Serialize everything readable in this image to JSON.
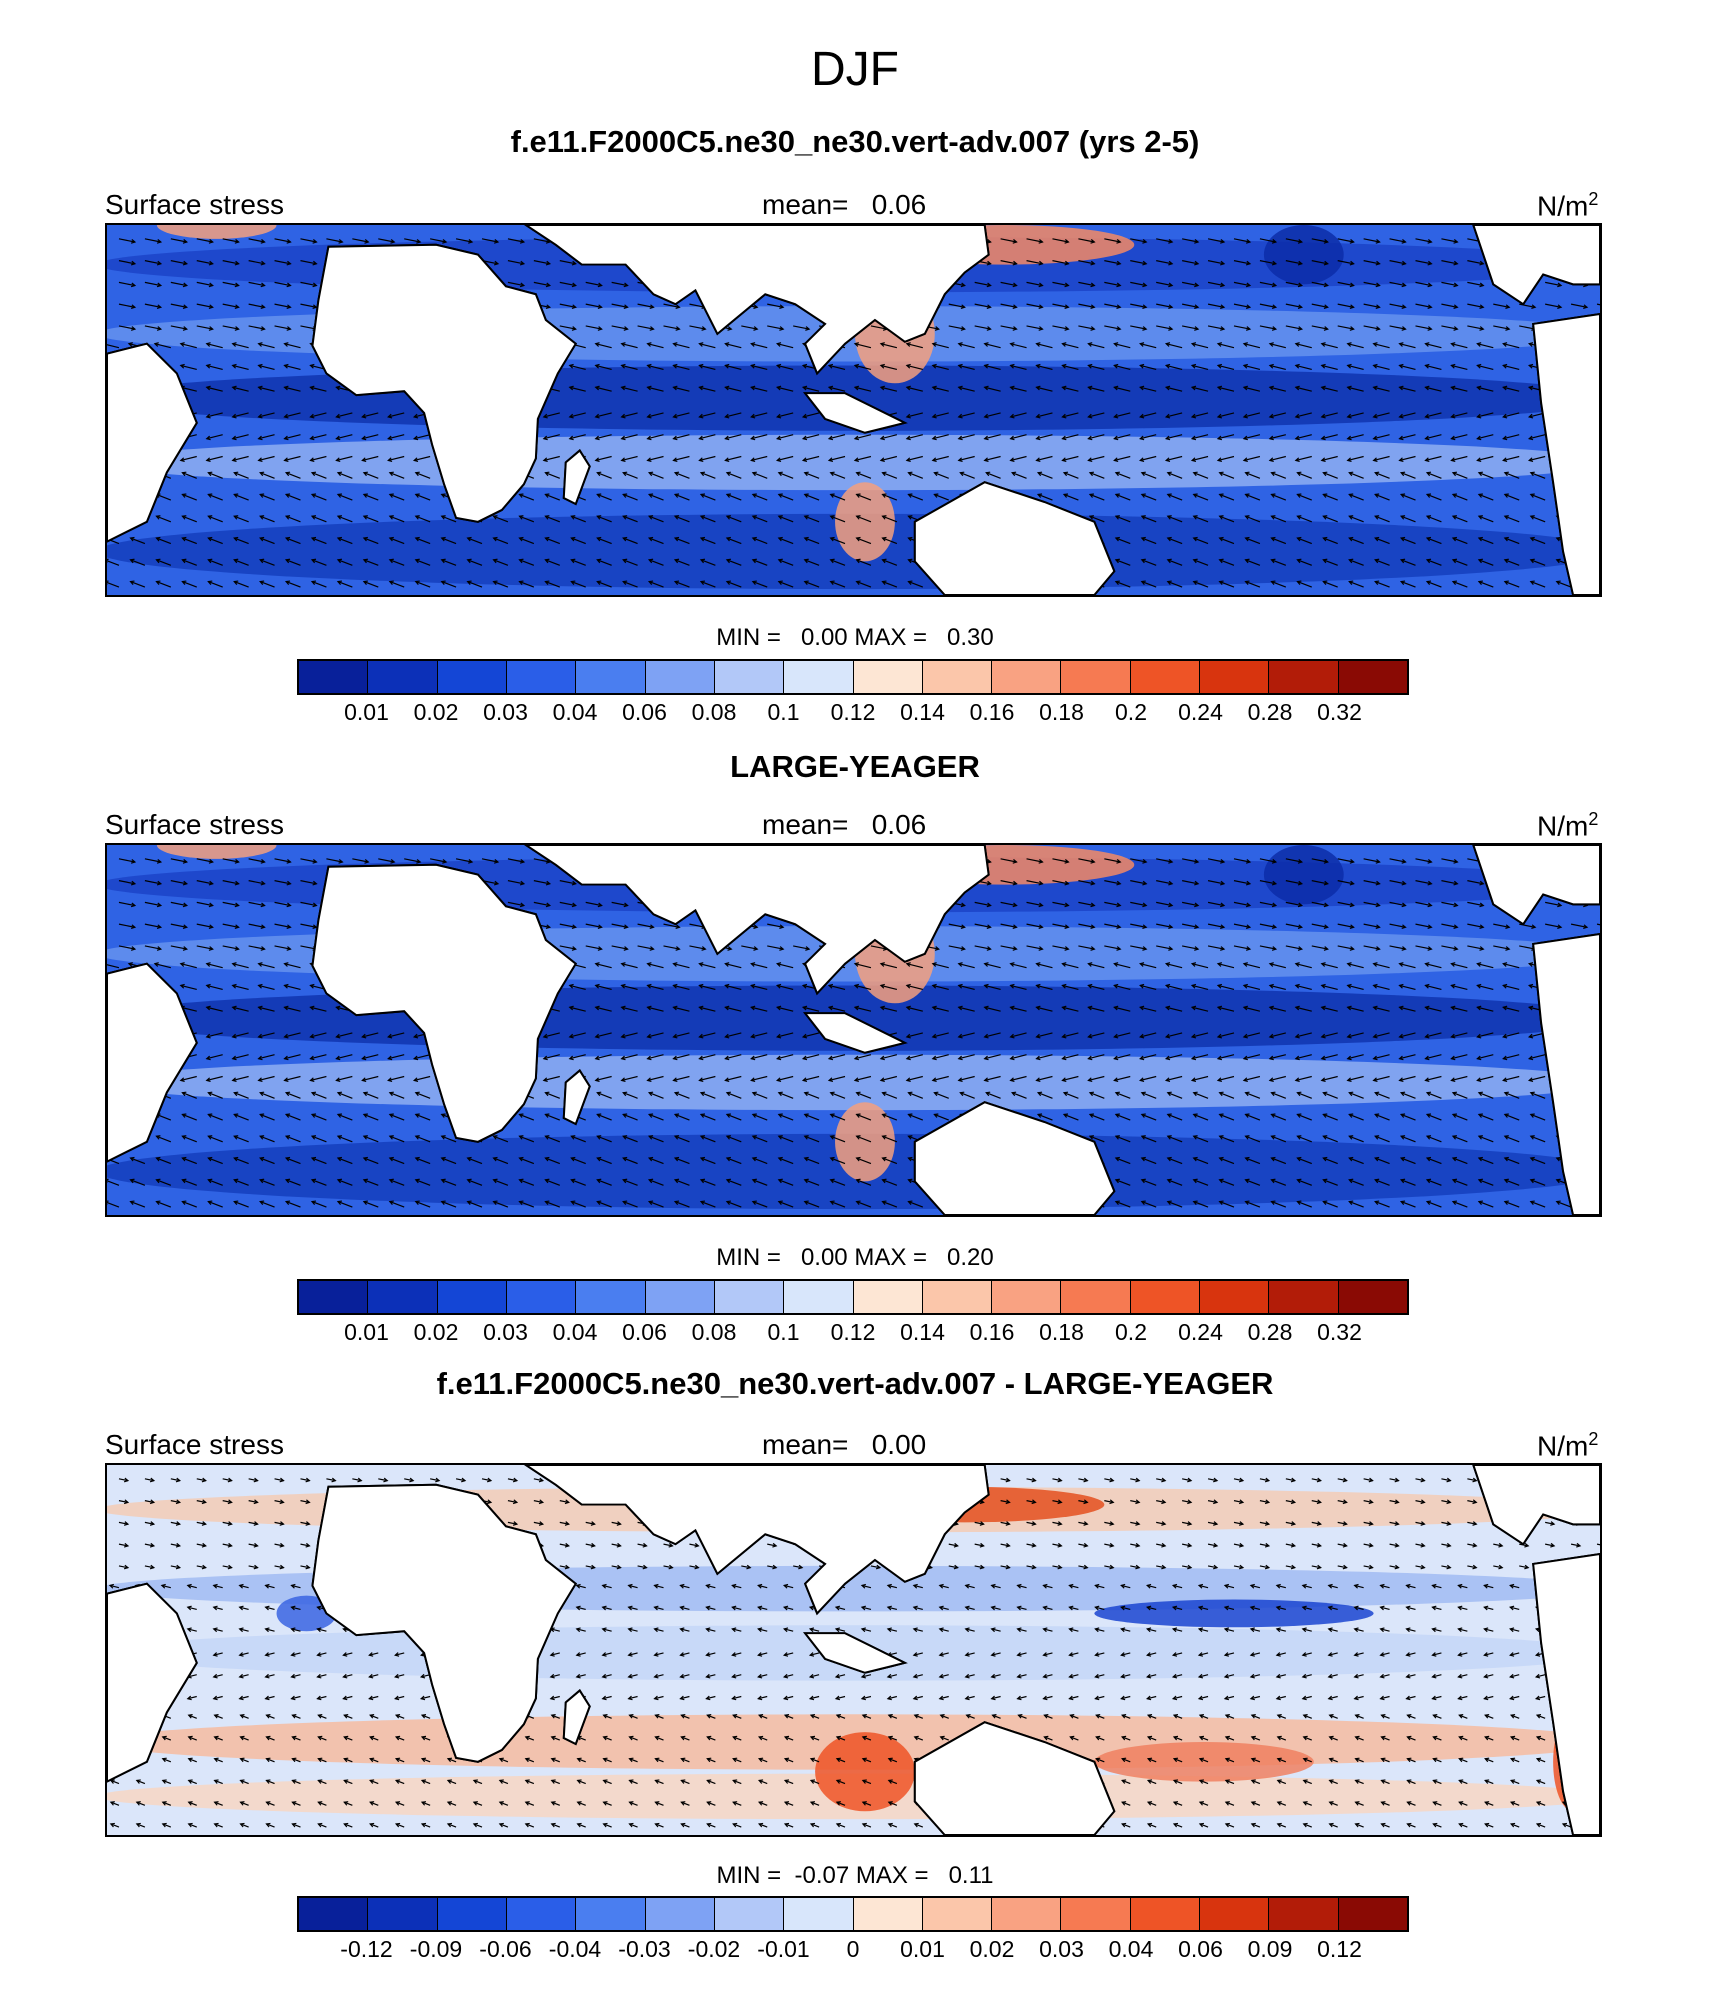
{
  "title": "DJF",
  "units": "N/m",
  "units_sup": "2",
  "panels": [
    {
      "title": "f.e11.F2000C5.ne30_ne30.vert-adv.007 (yrs 2-5)",
      "left_label": "Surface stress",
      "mean_label": "mean=   0.06",
      "minmax": "MIN =   0.00 MAX =   0.30",
      "scale": "abs"
    },
    {
      "title": "LARGE-YEAGER",
      "left_label": "Surface stress",
      "mean_label": "mean=   0.06",
      "minmax": "MIN =   0.00 MAX =   0.20",
      "scale": "abs"
    },
    {
      "title": "f.e11.F2000C5.ne30_ne30.vert-adv.007 - LARGE-YEAGER",
      "left_label": "Surface stress",
      "mean_label": "mean=   0.00",
      "minmax": "MIN =  -0.07 MAX =   0.11",
      "scale": "diff"
    }
  ],
  "colorbars": {
    "colors": [
      "#08209a",
      "#0c30b8",
      "#1446d6",
      "#2a5ee8",
      "#4a7ef0",
      "#7ea2f4",
      "#b2c8f8",
      "#d8e6fb",
      "#fde6d4",
      "#fbc6aa",
      "#f9a282",
      "#f67a52",
      "#ee5426",
      "#d8340e",
      "#b21c08",
      "#8a0a04"
    ],
    "abs_ticks": [
      "0.01",
      "0.02",
      "0.03",
      "0.04",
      "0.06",
      "0.08",
      "0.1",
      "0.12",
      "0.14",
      "0.16",
      "0.18",
      "0.2",
      "0.24",
      "0.28",
      "0.32"
    ],
    "diff_ticks": [
      "-0.12",
      "-0.09",
      "-0.06",
      "-0.04",
      "-0.03",
      "-0.02",
      "-0.01",
      "0",
      "0.01",
      "0.02",
      "0.03",
      "0.04",
      "0.06",
      "0.09",
      "0.12"
    ]
  }
}
